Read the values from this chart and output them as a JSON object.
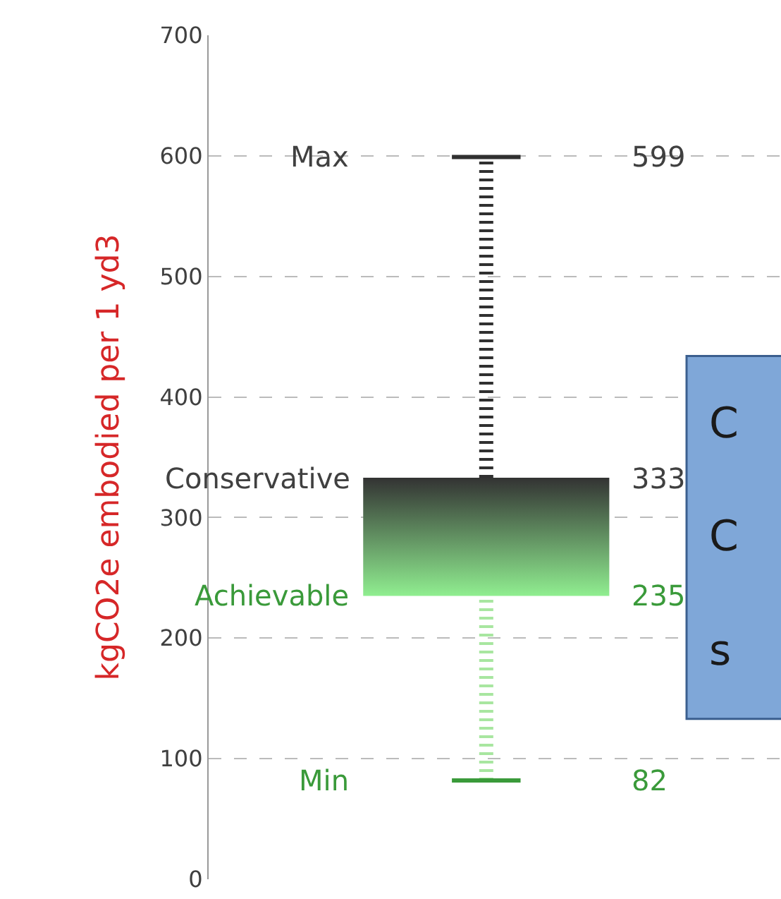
{
  "chart_data": {
    "type": "box",
    "ylabel": "kgCO2e embodied per 1 yd3",
    "categories": [
      null
    ],
    "boxes": [
      {
        "low": 82,
        "q1": 235,
        "q3": 333,
        "high": 599
      }
    ],
    "ylim": [
      0,
      700
    ],
    "yticks": [
      0,
      100,
      200,
      300,
      400,
      500,
      600,
      700
    ],
    "grid": "y",
    "annotations": [
      "Max",
      "Conservative",
      "Achievable",
      "Min",
      "599",
      "333",
      "235",
      "82",
      "C",
      "C",
      "s"
    ]
  }
}
